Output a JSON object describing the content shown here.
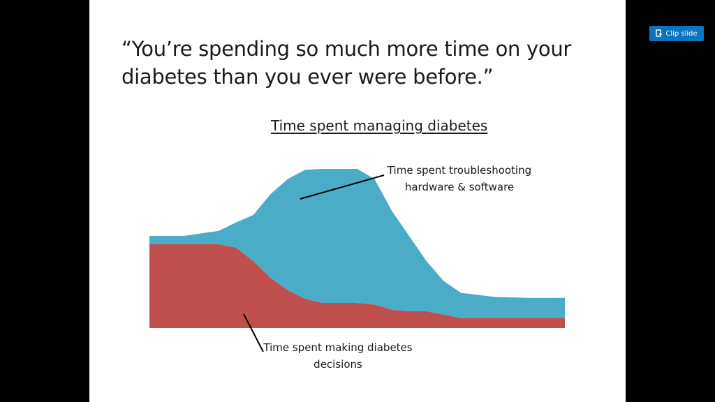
{
  "slide": {
    "quote_line1": "“You’re spending so much more time on your",
    "quote_line2": "diabetes than you ever were before.”"
  },
  "toolbar": {
    "clip_slide_label": "Clip slide",
    "clip_icon": "clip-icon"
  },
  "colors": {
    "troubleshooting_fill": "#4aacc6",
    "decisions_fill": "#c0504d",
    "button": "#0a74be"
  },
  "chart_data": {
    "type": "area",
    "title": "Time spent managing diabetes",
    "stacked": true,
    "grid": false,
    "axes_visible": false,
    "x": [
      0,
      5,
      10,
      12.5,
      15,
      17.5,
      20,
      22.5,
      25,
      30,
      32.5,
      35,
      37.5,
      40,
      42.5,
      45,
      50,
      55,
      60
    ],
    "series": [
      {
        "name": "Time spent making diabetes decisions",
        "color": "#c0504d",
        "values": [
          10,
          10,
          10,
          9.6,
          8,
          6,
          4.5,
          3.5,
          3,
          3,
          2.8,
          2.2,
          2,
          2,
          1.6,
          1.2,
          1.2,
          1.2,
          1.2
        ]
      },
      {
        "name": "Time spent troubleshooting hardware & software",
        "color": "#4aacc6",
        "values": [
          1,
          1,
          1.6,
          3,
          5.5,
          10,
          13.3,
          15.4,
          16,
          16,
          15,
          11.8,
          9,
          6,
          4,
          3,
          2.5,
          2.4,
          2.4
        ]
      }
    ],
    "ylim": [
      0,
      20
    ],
    "annotations": {
      "top_line1": "Time spent troubleshooting",
      "top_line2": "hardware & software",
      "bottom_line1": "Time spent making diabetes",
      "bottom_line2": "decisions"
    }
  }
}
